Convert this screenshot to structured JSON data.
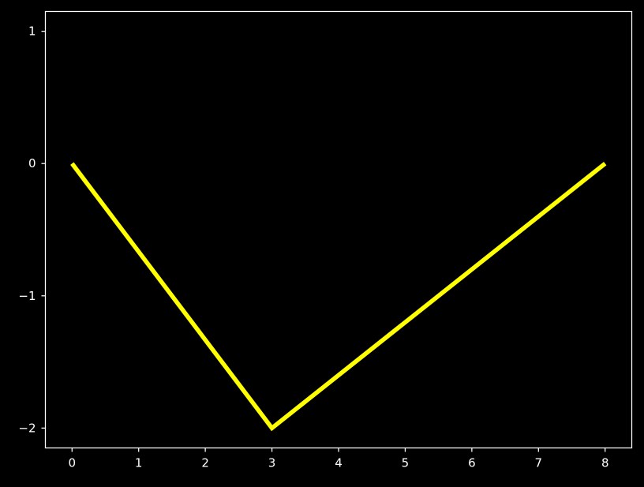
{
  "chart_data": {
    "type": "line",
    "title": "",
    "xlabel": "",
    "ylabel": "",
    "xlim": [
      -0.4,
      8.4
    ],
    "ylim": [
      -2.15,
      1.15
    ],
    "x_ticks": [
      {
        "value": 0,
        "label": "0"
      },
      {
        "value": 1,
        "label": "1"
      },
      {
        "value": 2,
        "label": "2"
      },
      {
        "value": 3,
        "label": "3"
      },
      {
        "value": 4,
        "label": "4"
      },
      {
        "value": 5,
        "label": "5"
      },
      {
        "value": 6,
        "label": "6"
      },
      {
        "value": 7,
        "label": "7"
      },
      {
        "value": 8,
        "label": "8"
      }
    ],
    "y_ticks": [
      {
        "value": -2,
        "label": "−2"
      },
      {
        "value": -1,
        "label": "−1"
      },
      {
        "value": 0,
        "label": "0"
      },
      {
        "value": 1,
        "label": "1"
      }
    ],
    "grid": false,
    "legend": "none",
    "background_color": "#000000",
    "axis_color": "#ffffff",
    "series": [
      {
        "color": "#ffff00",
        "x": [
          0,
          3,
          8
        ],
        "y": [
          0,
          -2,
          0
        ]
      }
    ]
  }
}
